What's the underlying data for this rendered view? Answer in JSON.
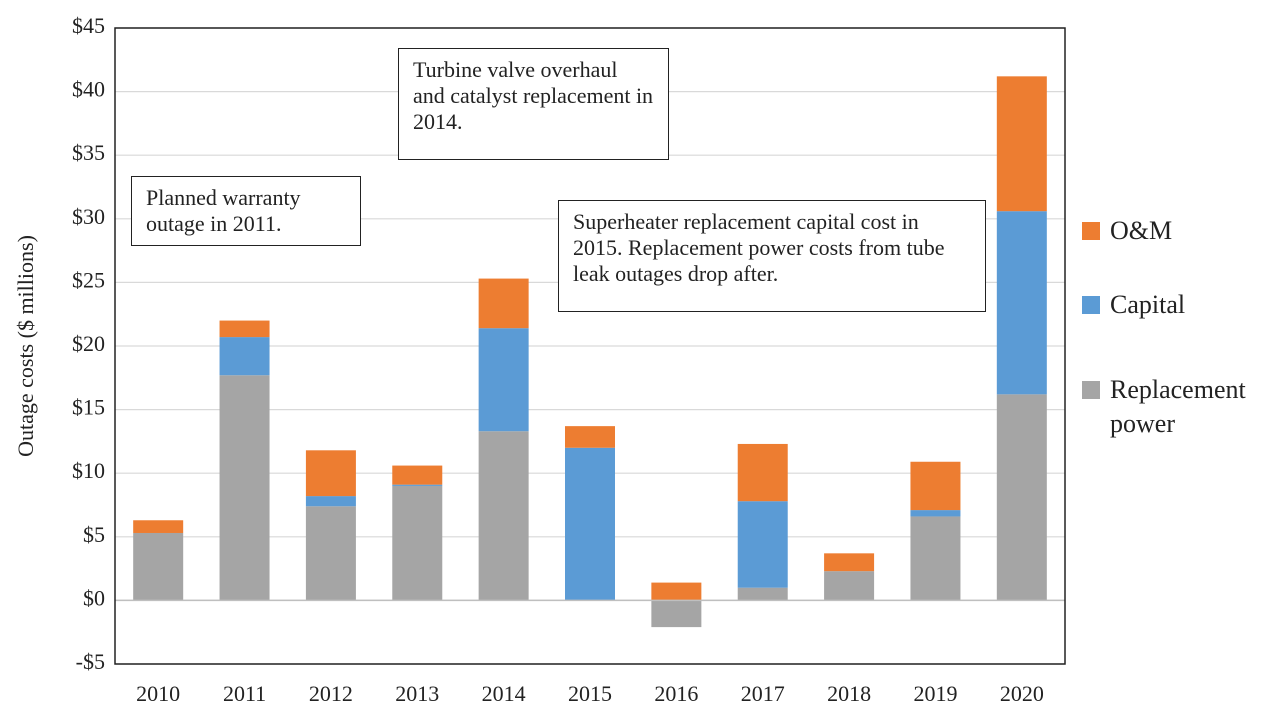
{
  "chart_data": {
    "type": "stacked_bar",
    "y_axis_label": "Outage costs ($ millions)",
    "categories": [
      "2010",
      "2011",
      "2012",
      "2013",
      "2014",
      "2015",
      "2016",
      "2017",
      "2018",
      "2019",
      "2020"
    ],
    "series": [
      {
        "name": "Replacement power",
        "color": "#a5a5a5",
        "values": [
          5.3,
          17.7,
          7.4,
          9.0,
          13.3,
          0,
          -2.1,
          1.0,
          2.3,
          6.6,
          16.2
        ]
      },
      {
        "name": "Capital",
        "color": "#5b9bd5",
        "values": [
          0,
          3.0,
          0.8,
          0.1,
          8.1,
          12.0,
          0,
          6.8,
          0,
          0.5,
          14.4
        ]
      },
      {
        "name": "O&M",
        "color": "#ed7d31",
        "values": [
          1.0,
          1.3,
          3.6,
          1.5,
          3.9,
          1.7,
          1.4,
          4.5,
          1.4,
          3.8,
          10.6
        ]
      }
    ],
    "ylim": [
      -5,
      45
    ],
    "yticks": [
      {
        "value": -5,
        "label": "-$5"
      },
      {
        "value": 0,
        "label": "$0"
      },
      {
        "value": 5,
        "label": "$5"
      },
      {
        "value": 10,
        "label": "$10"
      },
      {
        "value": 15,
        "label": "$15"
      },
      {
        "value": 20,
        "label": "$20"
      },
      {
        "value": 25,
        "label": "$25"
      },
      {
        "value": 30,
        "label": "$30"
      },
      {
        "value": 35,
        "label": "$35"
      },
      {
        "value": 40,
        "label": "$40"
      },
      {
        "value": 45,
        "label": "$45"
      }
    ],
    "grid": true,
    "legend": "right",
    "annotations": [
      "Planned warranty outage in 2011.",
      "Turbine valve overhaul and catalyst replacement in 2014.",
      "Superheater replacement capital cost in 2015. Replacement power costs from tube leak outages drop after."
    ]
  }
}
